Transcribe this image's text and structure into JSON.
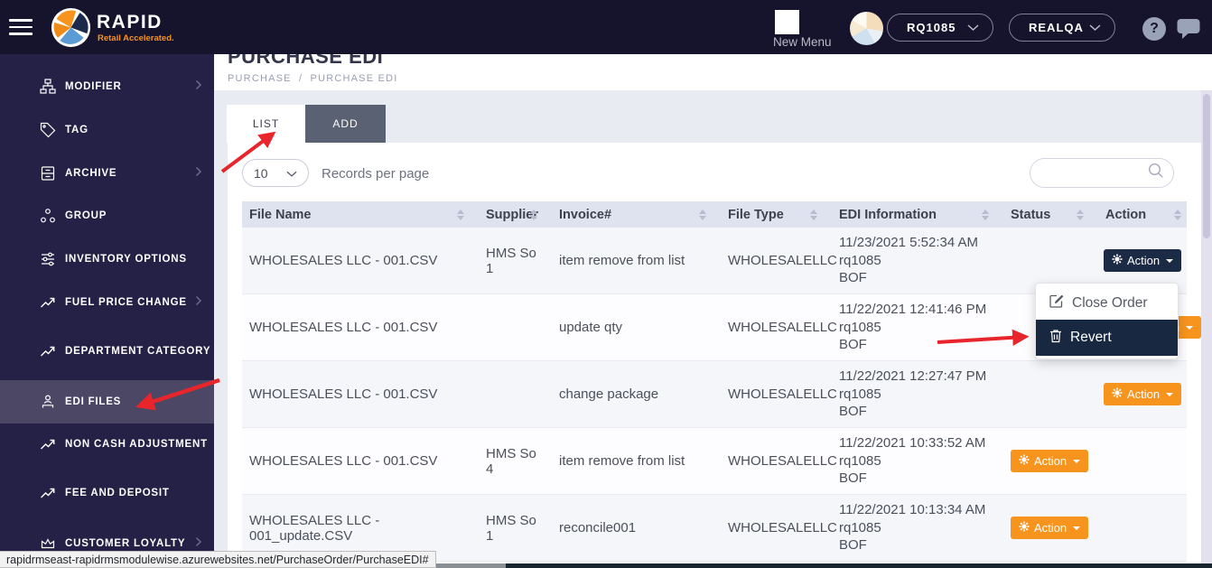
{
  "header": {
    "brand": {
      "name": "RAPID",
      "tagline": "Retail Accelerated."
    },
    "new_menu_label": "New Menu",
    "store_dropdown": {
      "value": "RQ1085"
    },
    "env_dropdown": {
      "value": "REALQA"
    },
    "help_glyph": "?"
  },
  "sidebar": {
    "items": [
      {
        "label": "MODIFIER",
        "icon": "sitemap",
        "chevron": true,
        "active": false
      },
      {
        "label": "TAG",
        "icon": "tag",
        "chevron": false,
        "active": false
      },
      {
        "label": "ARCHIVE",
        "icon": "archive",
        "chevron": true,
        "active": false
      },
      {
        "label": "GROUP",
        "icon": "group",
        "chevron": false,
        "active": false
      },
      {
        "label": "INVENTORY OPTIONS",
        "icon": "sliders",
        "chevron": false,
        "active": false
      },
      {
        "label": "FUEL PRICE CHANGE",
        "icon": "trend",
        "chevron": true,
        "active": false
      },
      {
        "label": "DEPARTMENT CATEGORY",
        "icon": "trend",
        "chevron": false,
        "active": false
      },
      {
        "label": "EDI FILES",
        "icon": "person",
        "chevron": false,
        "active": true
      },
      {
        "label": "NON CASH ADJUSTMENT",
        "icon": "trend",
        "chevron": false,
        "active": false
      },
      {
        "label": "FEE AND DEPOSIT",
        "icon": "trend",
        "chevron": false,
        "active": false
      },
      {
        "label": "CUSTOMER LOYALTY",
        "icon": "crown",
        "chevron": true,
        "active": false
      }
    ]
  },
  "page": {
    "title": "PURCHASE EDI",
    "breadcrumb": {
      "parent": "PURCHASE",
      "separator": "/",
      "current": "PURCHASE EDI"
    }
  },
  "tabs": [
    {
      "label": "LIST",
      "active": true
    },
    {
      "label": "ADD",
      "active": false
    }
  ],
  "controls": {
    "records_per_page_value": "10",
    "records_per_page_label": "Records per page",
    "search_placeholder": ""
  },
  "table": {
    "columns": [
      "File Name",
      "Supplier",
      "Invoice#",
      "File Type",
      "EDI Information",
      "Status",
      "Action"
    ],
    "rows": [
      {
        "file_name": "WHOLESALES LLC - 001.CSV",
        "supplier": "HMS So 1",
        "invoice": "item remove from list",
        "file_type": "WHOLESALELLC",
        "edi_info": [
          "11/23/2021 5:52:34 AM",
          "rq1085",
          "BOF"
        ],
        "status": "",
        "action": {
          "label": "Action",
          "icon": "gear",
          "style": "dark",
          "in_status_col": false
        }
      },
      {
        "file_name": "WHOLESALES LLC - 001.CSV",
        "supplier": "",
        "invoice": "update qty",
        "file_type": "WHOLESALELLC",
        "edi_info": [
          "11/22/2021 12:41:46 PM",
          "rq1085",
          "BOF"
        ],
        "status": "",
        "action": {
          "label": "Action",
          "icon": "gear",
          "style": "orange",
          "in_status_col": false
        }
      },
      {
        "file_name": "WHOLESALES LLC - 001.CSV",
        "supplier": "",
        "invoice": "change package",
        "file_type": "WHOLESALELLC",
        "edi_info": [
          "11/22/2021 12:27:47 PM",
          "rq1085",
          "BOF"
        ],
        "status": "",
        "action": {
          "label": "Action",
          "icon": "gear",
          "style": "orange",
          "in_status_col": false
        }
      },
      {
        "file_name": "WHOLESALES LLC - 001.CSV",
        "supplier": "HMS So 4",
        "invoice": "item remove from list",
        "file_type": "WHOLESALELLC",
        "edi_info": [
          "11/22/2021 10:33:52 AM",
          "rq1085",
          "BOF"
        ],
        "status": "",
        "action": {
          "label": "Action",
          "icon": "gear",
          "style": "orange",
          "in_status_col": true
        }
      },
      {
        "file_name": "WHOLESALES LLC - 001_update.CSV",
        "supplier": "HMS So 1",
        "invoice": "reconcile001",
        "file_type": "WHOLESALELLC",
        "edi_info": [
          "11/22/2021 10:13:34 AM",
          "rq1085",
          "BOF"
        ],
        "status": "",
        "action": {
          "label": "Action",
          "icon": "gear",
          "style": "orange",
          "in_status_col": true
        }
      }
    ]
  },
  "action_menu": {
    "items": [
      {
        "label": "Close Order",
        "icon": "edit",
        "highlighted": false
      },
      {
        "label": "Revert",
        "icon": "trash",
        "highlighted": true
      }
    ]
  },
  "status_bar": {
    "url": "rapidrmseast-rapidrmsmodulewise.azurewebsites.net/PurchaseOrder/PurchaseEDI#"
  },
  "colors": {
    "accent_orange": "#f7941e",
    "dark_navy": "#192841",
    "header_bg": "#16132c",
    "sidebar_bg": "#252045",
    "annotation_red": "#e8252a"
  }
}
